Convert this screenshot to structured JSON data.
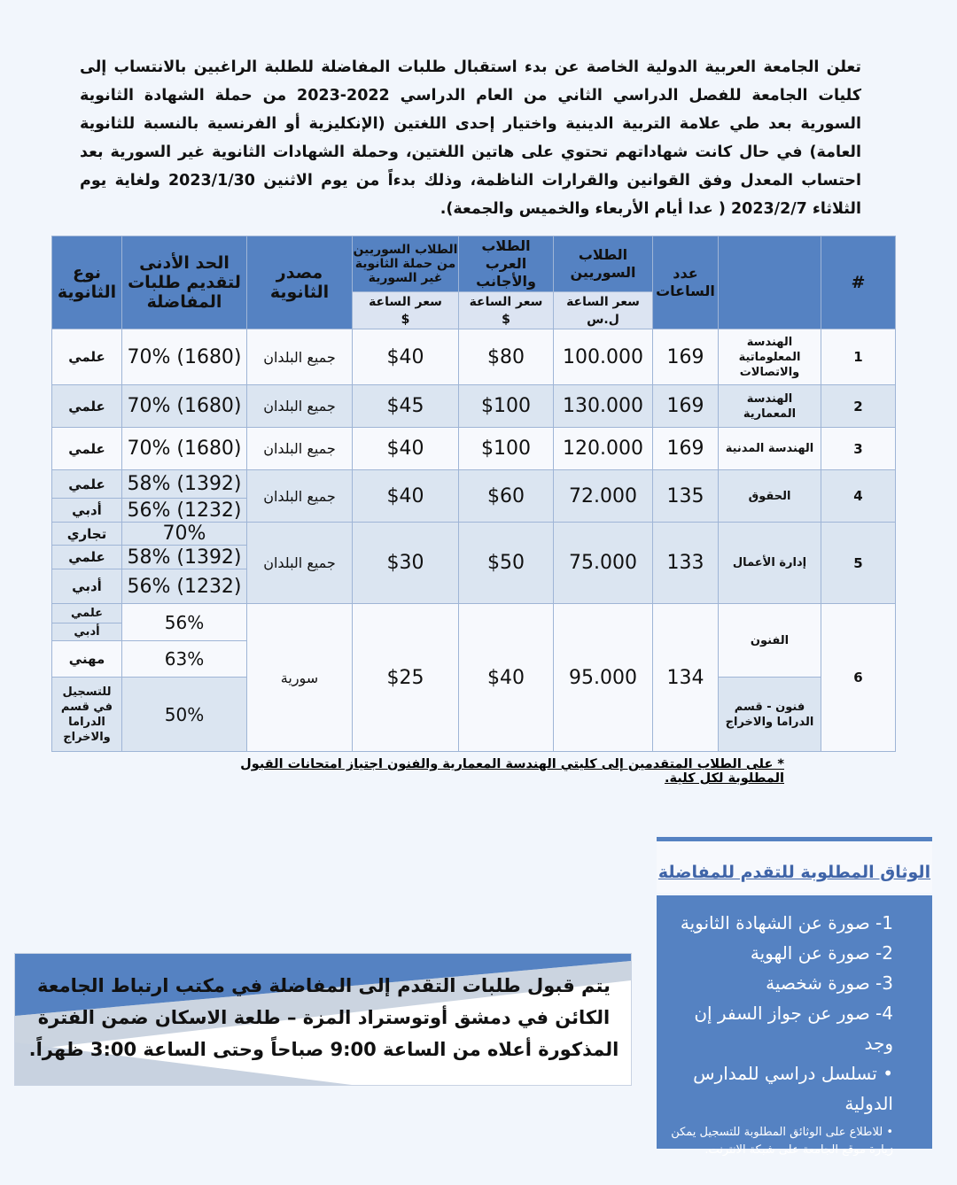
{
  "intro": "تعلن الجامعة العربية الدولية الخاصة عن بدء استقبال طلبات المفاضلة للطلبة الراغبين بالانتساب إلى كليات الجامعة للفصل الدراسي الثاني من العام الدراسي 2022-2023 من حملة الشهادة الثانوية السورية بعد طي علامة التربية الدينية واختيار إحدى اللغتين (الإنكليزية أو الفرنسية بالنسبة للثانوية العامة) في حال كانت شهاداتهم تحتوي على هاتين اللغتين، وحملة الشهادات الثانوية غير السورية بعد احتساب المعدل وفق القوانين والقرارات الناظمة، وذلك بدءاً من يوم الاثنين 2023/1/30 ولغاية يوم الثلاثاء 2023/2/7 ( عدا أيام الأربعاء والخميس والجمعة).",
  "table": {
    "headers": {
      "num": "#",
      "name": "",
      "hours": "عدد الساعات",
      "syrian": "الطلاب السوريين",
      "arab": "الطلاب العرب والأجانب",
      "nonsyr": "الطلاب السوريين من حملة الثانوية غير السورية",
      "source": "مصدر الثانوية",
      "min": "الحد الأدنى لتقديم طلبات المفاضلة",
      "type": "نوع الثانوية",
      "price": "سعر الساعة",
      "cur_sp": "ل.س",
      "cur_usd": "$"
    },
    "rows": [
      {
        "num": "1",
        "name": "الهندسة المعلوماتية والاتصالات",
        "hours": "169",
        "syrian": "100.000",
        "arab": "$80",
        "nonsyr": "$40",
        "source": "جميع البلدان",
        "min": "70% (1680)",
        "type": "علمي"
      },
      {
        "num": "2",
        "name": "الهندسة المعمارية",
        "hours": "169",
        "syrian": "130.000",
        "arab": "$100",
        "nonsyr": "$45",
        "source": "جميع البلدان",
        "min": "70% (1680)",
        "type": "علمي"
      },
      {
        "num": "3",
        "name": "الهندسة المدنية",
        "hours": "169",
        "syrian": "120.000",
        "arab": "$100",
        "nonsyr": "$40",
        "source": "جميع البلدان",
        "min": "70% (1680)",
        "type": "علمي"
      },
      {
        "num": "4",
        "name": "الحقوق",
        "hours": "135",
        "syrian": "72.000",
        "arab": "$60",
        "nonsyr": "$40",
        "source": "جميع البلدان",
        "sub": [
          {
            "min": "58% (1392)",
            "type": "علمي"
          },
          {
            "min": "56% (1232)",
            "type": "أدبي"
          }
        ]
      },
      {
        "num": "5",
        "name": "إدارة الأعمال",
        "hours": "133",
        "syrian": "75.000",
        "arab": "$50",
        "nonsyr": "$30",
        "source": "جميع البلدان",
        "sub": [
          {
            "min": "70%",
            "type": "تجاري"
          },
          {
            "min": "58% (1392)",
            "type": "علمي"
          },
          {
            "min": "56% (1232)",
            "type": "أدبي"
          }
        ]
      },
      {
        "num": "6",
        "name": "الفنون",
        "name2": "فنون - قسم الدراما والاخراج",
        "hours": "134",
        "syrian": "95.000",
        "arab": "$40",
        "nonsyr": "$25",
        "source": "سورية",
        "sub": [
          {
            "min": "56%",
            "type": "علمي"
          },
          {
            "type": "أدبي"
          },
          {
            "min": "63%",
            "type": "مهني"
          },
          {
            "min": "50%",
            "type": "للتسجيل في قسم الدراما والاخراج"
          }
        ]
      }
    ]
  },
  "note": "*  على الطلاب المتقدمين إلى كليتي الهندسة المعمارية والفنون اجتياز امتحانات القبول المطلوبة لكل كلية.",
  "docs": {
    "title": "الوثاق المطلوبة للتقدم للمفاضلة",
    "items": [
      "1- صورة عن الشهادة الثانوية",
      "2- صورة عن الهوية",
      "3- صورة شخصية",
      "4- صور عن جواز السفر إن وجد",
      "•  تسلسل دراسي للمدارس الدولية",
      "•  للاطلاع على الوثائق المطلوبة للتسجيل يمكن زيارة موقع الجامعة على شبكة الانترنت."
    ]
  },
  "place": "يتم قبول طلبات التقدم إلى المفاضلة في مكتب ارتباط الجامعة الكائن في دمشق أوتوستراد المزة – طلعة الاسكان ضمن الفترة المذكورة أعلاه من الساعة 9:00 صباحاً وحتى الساعة 3:00 ظهراً."
}
